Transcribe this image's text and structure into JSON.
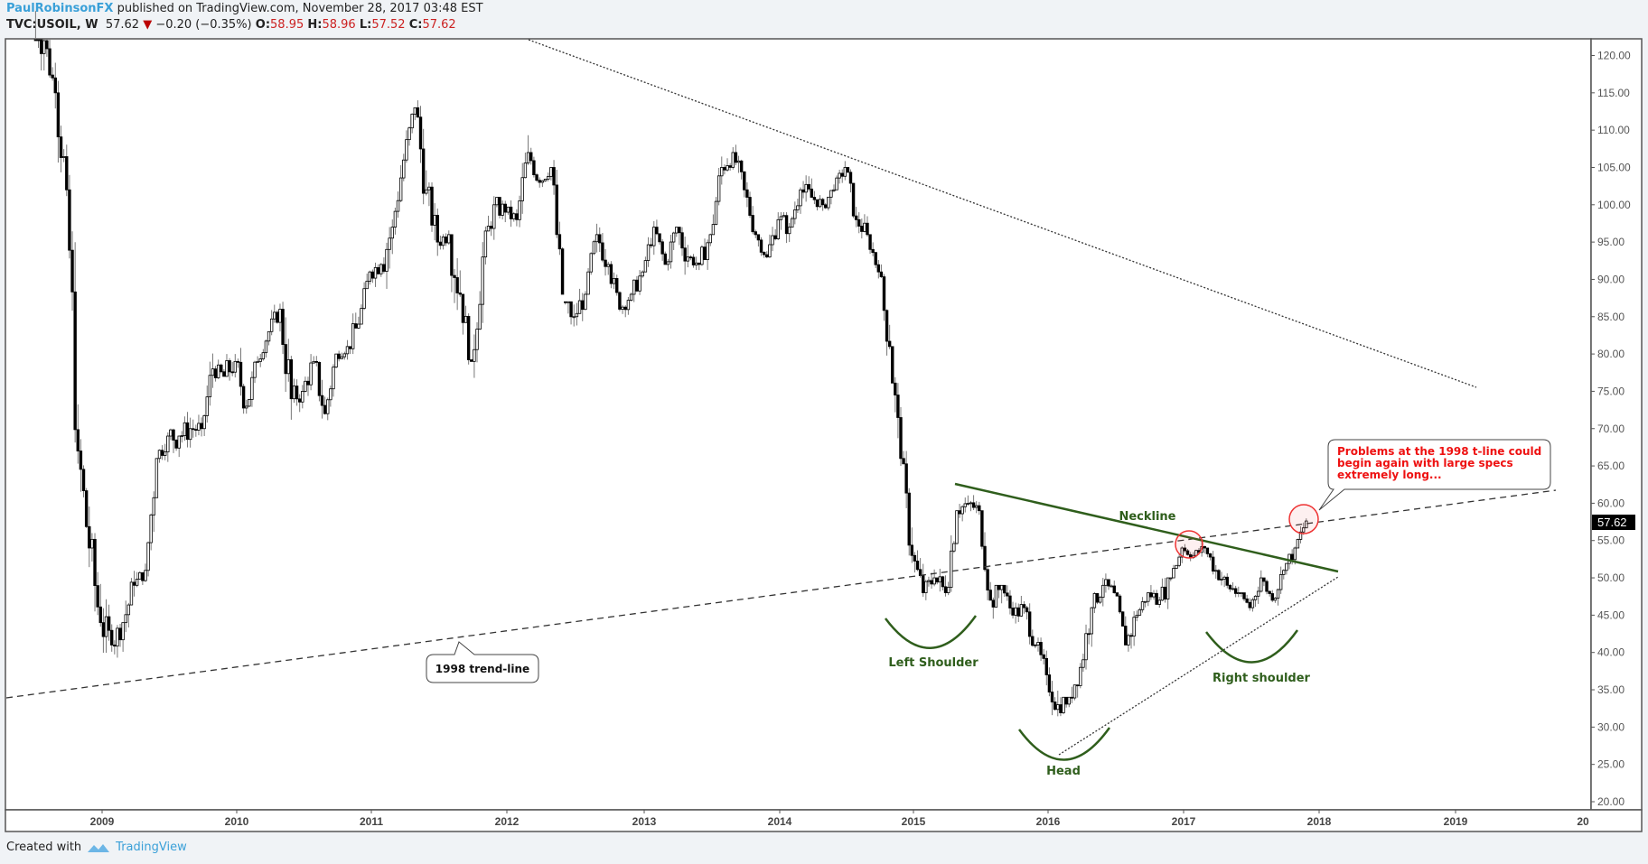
{
  "header": {
    "author": "PaulRobinsonFX",
    "published_text": " published on TradingView.com, November 28, 2017 03:48 EST",
    "symbol": "TVC:USOIL, W",
    "last": "57.62",
    "change": "−0.20 (−0.35%)",
    "open_label": "O:",
    "open": "58.95",
    "high_label": "H:",
    "high": "58.96",
    "low_label": "L:",
    "low": "57.52",
    "close_label": "C:",
    "close": "57.62"
  },
  "footer": {
    "created_with": "Created with",
    "brand": "TradingView"
  },
  "colors": {
    "annotation_green": "#2f5e1c",
    "callout_red": "#ee1111",
    "circle_red": "#e33",
    "axis": "#555555",
    "price_tag_bg": "#000000"
  },
  "chart_data": {
    "type": "candlestick",
    "title": "TVC:USOIL, W",
    "xlabel": "",
    "ylabel": "",
    "ylim": [
      20,
      120
    ],
    "y_ticks": [
      "120.00",
      "115.00",
      "110.00",
      "105.00",
      "100.00",
      "95.00",
      "90.00",
      "85.00",
      "80.00",
      "75.00",
      "70.00",
      "65.00",
      "60.00",
      "55.00",
      "50.00",
      "45.00",
      "40.00",
      "35.00",
      "30.00",
      "25.00",
      "20.00"
    ],
    "x_ticks": [
      "2009",
      "2010",
      "2011",
      "2012",
      "2013",
      "2014",
      "2015",
      "2016",
      "2017",
      "2018",
      "2019",
      "20"
    ],
    "last_price_label": "57.62",
    "price_path": [
      [
        "2008-07",
        128,
        140,
        118,
        122
      ],
      [
        "2008-08",
        122,
        124,
        112,
        115
      ],
      [
        "2008-09",
        115,
        120,
        100,
        102
      ],
      [
        "2008-10",
        102,
        104,
        64,
        67
      ],
      [
        "2008-11",
        67,
        70,
        48,
        54
      ],
      [
        "2008-12",
        54,
        56,
        33,
        44
      ],
      [
        "2009-01",
        44,
        48,
        34,
        41
      ],
      [
        "2009-02",
        41,
        44,
        35,
        44
      ],
      [
        "2009-03",
        44,
        54,
        42,
        49
      ],
      [
        "2009-04",
        49,
        52,
        46,
        51
      ],
      [
        "2009-05",
        51,
        66,
        50,
        66
      ],
      [
        "2009-06",
        66,
        73,
        65,
        69
      ],
      [
        "2009-07",
        69,
        70,
        59,
        69
      ],
      [
        "2009-08",
        69,
        75,
        66,
        70
      ],
      [
        "2009-09",
        70,
        72,
        65,
        70
      ],
      [
        "2009-10",
        70,
        82,
        69,
        78
      ],
      [
        "2009-11",
        78,
        81,
        75,
        77
      ],
      [
        "2009-12",
        77,
        80,
        70,
        79
      ],
      [
        "2010-01",
        79,
        84,
        72,
        73
      ],
      [
        "2010-02",
        73,
        80,
        70,
        79
      ],
      [
        "2010-03",
        79,
        83,
        78,
        83
      ],
      [
        "2010-04",
        83,
        87,
        80,
        86
      ],
      [
        "2010-05",
        86,
        87,
        65,
        74
      ],
      [
        "2010-06",
        74,
        79,
        70,
        75
      ],
      [
        "2010-07",
        75,
        80,
        71,
        79
      ],
      [
        "2010-08",
        79,
        83,
        71,
        72
      ],
      [
        "2010-09",
        72,
        80,
        70,
        80
      ],
      [
        "2010-10",
        80,
        84,
        79,
        81
      ],
      [
        "2010-11",
        81,
        89,
        80,
        84
      ],
      [
        "2010-12",
        84,
        92,
        84,
        91
      ],
      [
        "2011-01",
        91,
        93,
        86,
        92
      ],
      [
        "2011-02",
        92,
        100,
        84,
        97
      ],
      [
        "2011-03",
        97,
        107,
        96,
        106
      ],
      [
        "2011-04",
        106,
        114,
        104,
        113
      ],
      [
        "2011-05",
        113,
        114,
        95,
        102
      ],
      [
        "2011-06",
        102,
        103,
        90,
        95
      ],
      [
        "2011-07",
        95,
        100,
        94,
        96
      ],
      [
        "2011-08",
        96,
        96,
        76,
        88
      ],
      [
        "2011-09",
        88,
        90,
        78,
        79
      ],
      [
        "2011-10",
        79,
        95,
        75,
        93
      ],
      [
        "2011-11",
        93,
        103,
        92,
        100
      ],
      [
        "2011-12",
        100,
        101,
        93,
        99
      ],
      [
        "2012-01",
        99,
        103,
        97,
        98
      ],
      [
        "2012-02",
        98,
        110,
        97,
        107
      ],
      [
        "2012-03",
        107,
        110,
        102,
        103
      ],
      [
        "2012-04",
        103,
        106,
        101,
        105
      ],
      [
        "2012-05",
        105,
        106,
        88,
        87
      ],
      [
        "2012-06",
        87,
        87,
        77,
        85
      ],
      [
        "2012-07",
        85,
        92,
        83,
        88
      ],
      [
        "2012-08",
        88,
        98,
        88,
        96
      ],
      [
        "2012-09",
        96,
        100,
        90,
        92
      ],
      [
        "2012-10",
        92,
        93,
        85,
        86
      ],
      [
        "2012-11",
        86,
        90,
        84,
        88
      ],
      [
        "2012-12",
        88,
        92,
        85,
        91
      ],
      [
        "2013-01",
        91,
        98,
        91,
        97
      ],
      [
        "2013-02",
        97,
        98,
        92,
        92
      ],
      [
        "2013-03",
        92,
        97,
        90,
        97
      ],
      [
        "2013-04",
        97,
        97,
        86,
        93
      ],
      [
        "2013-05",
        93,
        96,
        91,
        92
      ],
      [
        "2013-06",
        92,
        99,
        91,
        96
      ],
      [
        "2013-07",
        96,
        108,
        96,
        105
      ],
      [
        "2013-08",
        105,
        112,
        103,
        107
      ],
      [
        "2013-09",
        107,
        109,
        101,
        102
      ],
      [
        "2013-10",
        102,
        103,
        95,
        96
      ],
      [
        "2013-11",
        96,
        96,
        91,
        93
      ],
      [
        "2013-12",
        93,
        100,
        92,
        98
      ],
      [
        "2014-01",
        98,
        99,
        91,
        97
      ],
      [
        "2014-02",
        97,
        104,
        97,
        102
      ],
      [
        "2014-03",
        102,
        105,
        97,
        101
      ],
      [
        "2014-04",
        101,
        104,
        99,
        100
      ],
      [
        "2014-05",
        100,
        105,
        99,
        102
      ],
      [
        "2014-06",
        102,
        107,
        102,
        105
      ],
      [
        "2014-07",
        105,
        106,
        97,
        98
      ],
      [
        "2014-08",
        98,
        99,
        92,
        96
      ],
      [
        "2014-09",
        96,
        96,
        90,
        91
      ],
      [
        "2014-10",
        91,
        92,
        79,
        81
      ],
      [
        "2014-11",
        81,
        81,
        65,
        66
      ],
      [
        "2014-12",
        66,
        67,
        52,
        53
      ],
      [
        "2015-01",
        53,
        55,
        44,
        48
      ],
      [
        "2015-02",
        48,
        54,
        47,
        50
      ],
      [
        "2015-03",
        50,
        52,
        42,
        48
      ],
      [
        "2015-04",
        48,
        59,
        47,
        59
      ],
      [
        "2015-05",
        59,
        62,
        56,
        60
      ],
      [
        "2015-06",
        60,
        62,
        56,
        59
      ],
      [
        "2015-07",
        59,
        59,
        47,
        47
      ],
      [
        "2015-08",
        47,
        49,
        38,
        49
      ],
      [
        "2015-09",
        49,
        49,
        43,
        45
      ],
      [
        "2015-10",
        45,
        50,
        43,
        46
      ],
      [
        "2015-11",
        46,
        47,
        39,
        41
      ],
      [
        "2015-12",
        41,
        42,
        34,
        37
      ],
      [
        "2016-01",
        37,
        38,
        26,
        33
      ],
      [
        "2016-02",
        33,
        34,
        26,
        34
      ],
      [
        "2016-03",
        34,
        42,
        33,
        38
      ],
      [
        "2016-04",
        38,
        47,
        36,
        46
      ],
      [
        "2016-05",
        46,
        50,
        43,
        49
      ],
      [
        "2016-06",
        49,
        52,
        46,
        48
      ],
      [
        "2016-07",
        48,
        48,
        40,
        41
      ],
      [
        "2016-08",
        41,
        49,
        39,
        45
      ],
      [
        "2016-09",
        45,
        48,
        43,
        48
      ],
      [
        "2016-10",
        48,
        52,
        46,
        47
      ],
      [
        "2016-11",
        47,
        50,
        42,
        50
      ],
      [
        "2016-12",
        50,
        55,
        50,
        54
      ],
      [
        "2017-01",
        54,
        55,
        51,
        53
      ],
      [
        "2017-02",
        53,
        55,
        51,
        54
      ],
      [
        "2017-03",
        54,
        54,
        47,
        51
      ],
      [
        "2017-04",
        51,
        54,
        48,
        49
      ],
      [
        "2017-05",
        49,
        52,
        44,
        48
      ],
      [
        "2017-06",
        48,
        48,
        42,
        46
      ],
      [
        "2017-07",
        46,
        51,
        45,
        50
      ],
      [
        "2017-08",
        50,
        50,
        46,
        47
      ],
      [
        "2017-09",
        47,
        52,
        46,
        51
      ],
      [
        "2017-10",
        51,
        55,
        49,
        54
      ],
      [
        "2017-11",
        54,
        59,
        54,
        57.62
      ]
    ]
  },
  "annotations": {
    "neckline_label": "Neckline",
    "left_shoulder_label": "Left Shoulder",
    "head_label": "Head",
    "right_shoulder_label": "Right shoulder",
    "trendline_callout": "1998 trend-line",
    "problems_callout": [
      "Problems at the 1998 t-line could",
      "begin again with large specs",
      "extremely long..."
    ]
  }
}
